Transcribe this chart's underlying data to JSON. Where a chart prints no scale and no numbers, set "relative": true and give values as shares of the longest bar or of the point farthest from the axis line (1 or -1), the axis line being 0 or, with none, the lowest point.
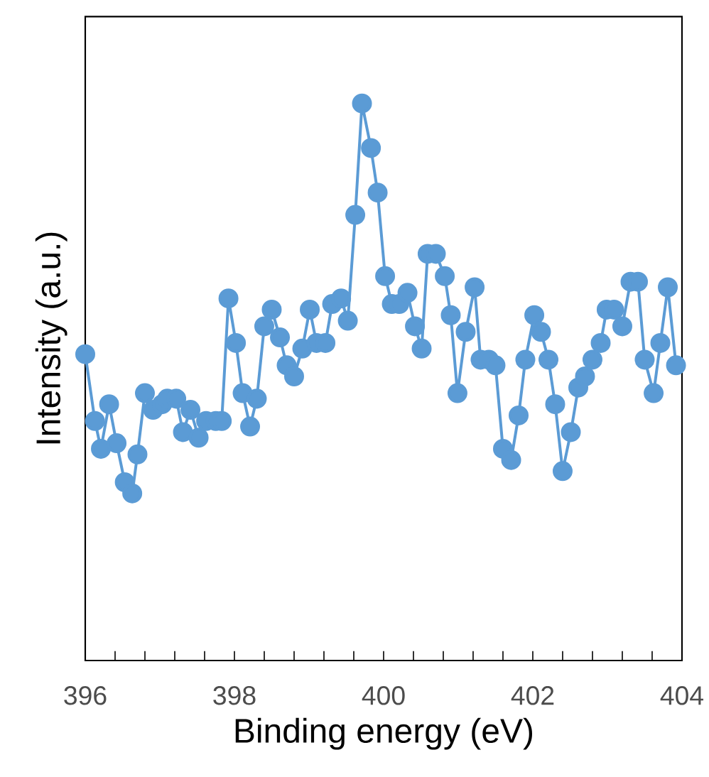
{
  "chart_data": {
    "type": "line",
    "relative": true,
    "xlabel": "Binding energy (eV)",
    "ylabel": "Intensity (a.u.)",
    "xlim": [
      396,
      404
    ],
    "xticks": [
      396,
      398,
      400,
      402,
      404
    ],
    "marker": "circle",
    "line_style": "solid",
    "grid": false,
    "tick_labels": "x",
    "x": [
      396.0,
      396.13,
      396.21,
      396.32,
      396.42,
      396.53,
      396.63,
      396.7,
      396.8,
      396.91,
      397.03,
      397.1,
      397.22,
      397.31,
      397.41,
      397.52,
      397.62,
      397.75,
      397.83,
      397.92,
      398.02,
      398.11,
      398.21,
      398.3,
      398.4,
      398.5,
      398.61,
      398.7,
      398.8,
      398.91,
      399.01,
      399.1,
      399.22,
      399.31,
      399.43,
      399.52,
      399.62,
      399.71,
      399.83,
      399.92,
      400.02,
      400.11,
      400.21,
      400.32,
      400.42,
      400.51,
      400.59,
      400.7,
      400.82,
      400.9,
      400.99,
      401.1,
      401.22,
      401.3,
      401.41,
      401.5,
      401.6,
      401.71,
      401.81,
      401.9,
      402.02,
      402.11,
      402.21,
      402.3,
      402.4,
      402.51,
      402.61,
      402.7,
      402.8,
      402.91,
      402.99,
      403.09,
      403.2,
      403.31,
      403.41,
      403.5,
      403.62,
      403.71,
      403.81,
      403.92
    ],
    "series": [
      {
        "color": "#5b9bd5",
        "values": [
          0.55,
          0.43,
          0.38,
          0.46,
          0.39,
          0.32,
          0.3,
          0.37,
          0.48,
          0.45,
          0.46,
          0.47,
          0.47,
          0.41,
          0.45,
          0.4,
          0.43,
          0.43,
          0.43,
          0.65,
          0.57,
          0.48,
          0.42,
          0.47,
          0.6,
          0.63,
          0.58,
          0.53,
          0.51,
          0.56,
          0.63,
          0.57,
          0.57,
          0.64,
          0.65,
          0.61,
          0.8,
          1.0,
          0.92,
          0.84,
          0.69,
          0.64,
          0.64,
          0.66,
          0.6,
          0.56,
          0.73,
          0.73,
          0.69,
          0.62,
          0.48,
          0.59,
          0.67,
          0.54,
          0.54,
          0.53,
          0.38,
          0.36,
          0.44,
          0.54,
          0.62,
          0.59,
          0.54,
          0.46,
          0.34,
          0.41,
          0.49,
          0.51,
          0.54,
          0.57,
          0.63,
          0.63,
          0.6,
          0.68,
          0.68,
          0.54,
          0.48,
          0.57,
          0.67,
          0.53
        ]
      }
    ]
  }
}
